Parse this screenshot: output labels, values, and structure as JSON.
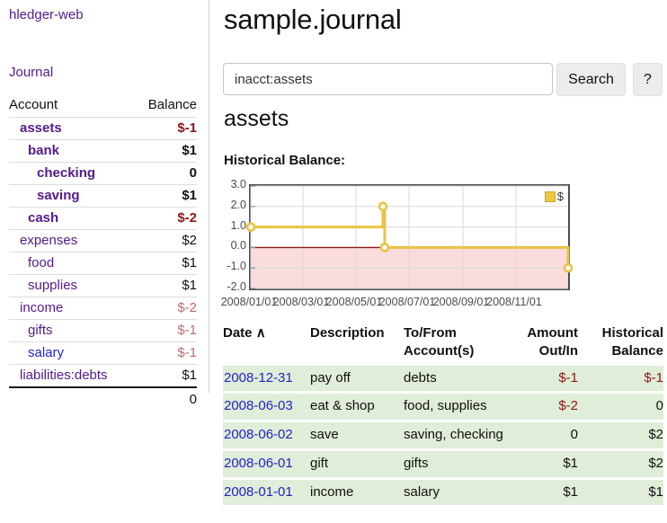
{
  "sidebar": {
    "app_title": "hledger-web",
    "journal_link": "Journal",
    "account_header": "Account",
    "balance_header": "Balance",
    "accounts": [
      {
        "name": "assets",
        "balance": "$-1",
        "depth": 1,
        "bold": true,
        "visited": false
      },
      {
        "name": "bank",
        "balance": "$1",
        "depth": 2,
        "bold": true,
        "visited": false
      },
      {
        "name": "checking",
        "balance": "0",
        "depth": 3,
        "bold": true,
        "visited": false
      },
      {
        "name": "saving",
        "balance": "$1",
        "depth": 3,
        "bold": true,
        "visited": false
      },
      {
        "name": "cash",
        "balance": "$-2",
        "depth": 2,
        "bold": true,
        "visited": false
      },
      {
        "name": "expenses",
        "balance": "$2",
        "depth": 1,
        "bold": false,
        "visited": false
      },
      {
        "name": "food",
        "balance": "$1",
        "depth": 2,
        "bold": false,
        "visited": false
      },
      {
        "name": "supplies",
        "balance": "$1",
        "depth": 2,
        "bold": false,
        "visited": false
      },
      {
        "name": "income",
        "balance": "$-2",
        "depth": 1,
        "bold": false,
        "visited": false
      },
      {
        "name": "gifts",
        "balance": "$-1",
        "depth": 2,
        "bold": false,
        "visited": false
      },
      {
        "name": "salary",
        "balance": "$-1",
        "depth": 2,
        "bold": false,
        "visited": true
      },
      {
        "name": "liabilities:debts",
        "balance": "$1",
        "depth": 1,
        "bold": false,
        "visited": false
      }
    ],
    "total": "0"
  },
  "header": {
    "title": "sample.journal"
  },
  "search": {
    "value": "inacct:assets",
    "clear_icon": "×",
    "search_button": "Search",
    "help_button": "?"
  },
  "account_page": {
    "heading": "assets",
    "chart_label": "Historical Balance:"
  },
  "chart_data": {
    "type": "line",
    "step": true,
    "title": "Historical Balance:",
    "series": [
      {
        "name": "$",
        "color": "#e9c344",
        "points": [
          [
            "2008-01-01",
            1
          ],
          [
            "2008-06-01",
            2
          ],
          [
            "2008-06-03",
            0
          ],
          [
            "2008-12-31",
            -1
          ]
        ]
      }
    ],
    "x_range": [
      "2008-01-01",
      "2008-12-31"
    ],
    "x_ticks": [
      "2008/01/01",
      "2008/03/01",
      "2008/05/01",
      "2008/07/01",
      "2008/09/01",
      "2008/11/01"
    ],
    "y_ticks": [
      3.0,
      2.0,
      1.0,
      0.0,
      -1.0,
      -2.0
    ],
    "ylim": [
      -2,
      3
    ],
    "grid": true,
    "legend": [
      "$"
    ],
    "legend_position": "top-right",
    "zero_line_color": "#8b1a1a",
    "negative_fill": "#fbdcdc"
  },
  "register": {
    "headers": {
      "date": "Date",
      "sort_icon": "∧",
      "description": "Description",
      "account_line1": "To/From",
      "account_line2": "Account(s)",
      "amount_line1": "Amount",
      "amount_line2": "Out/In",
      "balance_line1": "Historical",
      "balance_line2": "Balance"
    },
    "rows": [
      {
        "date": "2008-12-31",
        "description": "pay off",
        "account": "debts",
        "amount": "$-1",
        "balance": "$-1"
      },
      {
        "date": "2008-06-03",
        "description": "eat & shop",
        "account": "food, supplies",
        "amount": "$-2",
        "balance": "0"
      },
      {
        "date": "2008-06-02",
        "description": "save",
        "account": "saving, checking",
        "amount": "0",
        "balance": "$2"
      },
      {
        "date": "2008-06-01",
        "description": "gift",
        "account": "gifts",
        "amount": "$1",
        "balance": "$2"
      },
      {
        "date": "2008-01-01",
        "description": "income",
        "account": "salary",
        "amount": "$1",
        "balance": "$1"
      }
    ]
  },
  "colors": {
    "link_purple": "#551a8b",
    "link_blue": "#2222cc",
    "negative_strong": "#8b1717",
    "negative_soft": "#bd6b6b",
    "register_row_bg": "#e0edd8",
    "chart_line_gold": "#e9c344",
    "chart_negative_fill": "#fbdcdc",
    "chart_zero_line": "#8b1a1a"
  }
}
